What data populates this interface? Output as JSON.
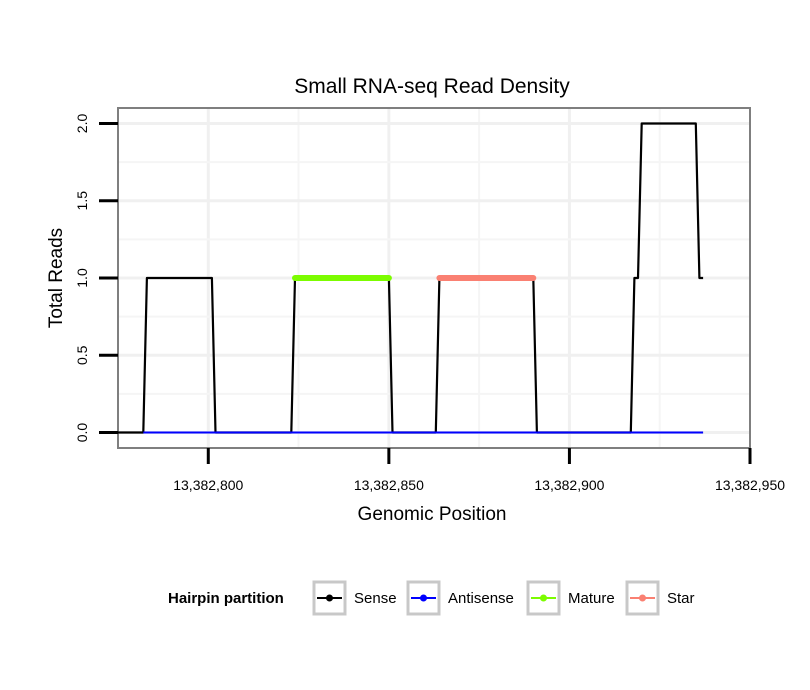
{
  "chart_data": {
    "type": "line",
    "title": "Small RNA-seq Read Density",
    "xlabel": "Genomic Position",
    "ylabel": "Total Reads",
    "xlim": [
      13382775,
      13382950
    ],
    "ylim": [
      -0.1,
      2.1
    ],
    "x_ticks": [
      13382800,
      13382850,
      13382900,
      13382950
    ],
    "x_tick_labels": [
      "13,382,800",
      "13,382,850",
      "13,382,900",
      "13,382,950"
    ],
    "y_ticks": [
      0,
      0.5,
      1,
      1.5,
      2
    ],
    "y_tick_labels": [
      "0.0",
      "0.5",
      "1.0",
      "1.5",
      "2.0"
    ],
    "grid": true,
    "legend": {
      "title": "Hairpin partition",
      "position": "bottom",
      "entries": [
        "Sense",
        "Antisense",
        "Mature",
        "Star"
      ]
    },
    "colors": {
      "Sense": "#000000",
      "Antisense": "#0000ff",
      "Mature": "#7cfc00",
      "Star": "#fa8072"
    },
    "series": [
      {
        "name": "Sense",
        "x": [
          13382775,
          13382782,
          13382783,
          13382801,
          13382802,
          13382823,
          13382824,
          13382850,
          13382851,
          13382863,
          13382864,
          13382890,
          13382891,
          13382917,
          13382918,
          13382919,
          13382920,
          13382935,
          13382936,
          13382937
        ],
        "values": [
          0,
          0,
          1,
          1,
          0,
          0,
          1,
          1,
          0,
          0,
          1,
          1,
          0,
          0,
          1,
          1,
          2,
          2,
          1,
          1
        ]
      },
      {
        "name": "Antisense",
        "x": [
          13382782,
          13382937
        ],
        "values": [
          0,
          0
        ]
      },
      {
        "name": "Mature",
        "x": [
          13382824,
          13382850
        ],
        "values": [
          1,
          1
        ]
      },
      {
        "name": "Star",
        "x": [
          13382864,
          13382890
        ],
        "values": [
          1,
          1
        ]
      }
    ]
  }
}
